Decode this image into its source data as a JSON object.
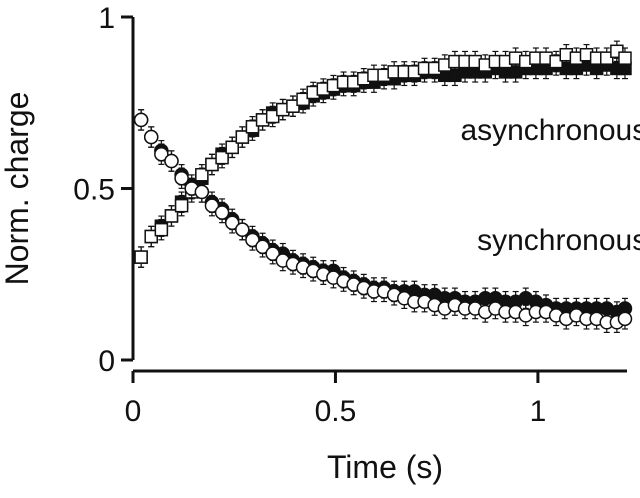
{
  "chart_data": {
    "type": "scatter",
    "title": "",
    "xlabel": "Time (s)",
    "ylabel": "Norm. charge",
    "xlim": [
      0,
      1.22
    ],
    "ylim": [
      0,
      1
    ],
    "xticks": [
      {
        "value": 0,
        "label": "0"
      },
      {
        "value": 0.5,
        "label": "0.5"
      },
      {
        "value": 1,
        "label": "1"
      }
    ],
    "yticks": [
      {
        "value": 0,
        "label": "0"
      },
      {
        "value": 0.5,
        "label": "0.5"
      },
      {
        "value": 1,
        "label": "1"
      }
    ],
    "grid": false,
    "legend": "none",
    "annotations": [
      {
        "text": "asynchronous",
        "x": 1.27,
        "y": 0.67
      },
      {
        "text": "synchronous",
        "x": 1.27,
        "y": 0.35
      }
    ],
    "series": [
      {
        "marker": "square-filled",
        "color": "#000000",
        "x": [
          0.02,
          0.045,
          0.07,
          0.095,
          0.12,
          0.145,
          0.17,
          0.195,
          0.22,
          0.245,
          0.27,
          0.295,
          0.32,
          0.345,
          0.37,
          0.395,
          0.42,
          0.445,
          0.47,
          0.495,
          0.52,
          0.545,
          0.57,
          0.595,
          0.62,
          0.645,
          0.67,
          0.695,
          0.72,
          0.745,
          0.77,
          0.795,
          0.82,
          0.845,
          0.87,
          0.895,
          0.92,
          0.945,
          0.97,
          0.995,
          1.02,
          1.045,
          1.07,
          1.095,
          1.12,
          1.145,
          1.17,
          1.195,
          1.215
        ],
        "y": [
          0.3,
          0.36,
          0.39,
          0.42,
          0.46,
          0.5,
          0.53,
          0.57,
          0.6,
          0.62,
          0.65,
          0.67,
          0.7,
          0.72,
          0.73,
          0.74,
          0.75,
          0.77,
          0.78,
          0.79,
          0.8,
          0.8,
          0.81,
          0.81,
          0.82,
          0.82,
          0.83,
          0.83,
          0.84,
          0.84,
          0.83,
          0.83,
          0.84,
          0.84,
          0.84,
          0.85,
          0.84,
          0.84,
          0.85,
          0.85,
          0.85,
          0.86,
          0.85,
          0.85,
          0.86,
          0.85,
          0.86,
          0.85,
          0.85
        ],
        "err": 0.015
      },
      {
        "marker": "square-open",
        "color": "#ffffff",
        "x": [
          0.02,
          0.045,
          0.07,
          0.095,
          0.12,
          0.145,
          0.17,
          0.195,
          0.22,
          0.245,
          0.27,
          0.295,
          0.32,
          0.345,
          0.37,
          0.395,
          0.42,
          0.445,
          0.47,
          0.495,
          0.52,
          0.545,
          0.57,
          0.595,
          0.62,
          0.645,
          0.67,
          0.695,
          0.72,
          0.745,
          0.77,
          0.795,
          0.82,
          0.845,
          0.87,
          0.895,
          0.92,
          0.945,
          0.97,
          0.995,
          1.02,
          1.045,
          1.07,
          1.095,
          1.12,
          1.145,
          1.17,
          1.195,
          1.215
        ],
        "y": [
          0.3,
          0.36,
          0.38,
          0.42,
          0.45,
          0.49,
          0.54,
          0.57,
          0.59,
          0.62,
          0.65,
          0.68,
          0.7,
          0.71,
          0.73,
          0.74,
          0.76,
          0.78,
          0.79,
          0.8,
          0.81,
          0.81,
          0.82,
          0.83,
          0.83,
          0.84,
          0.84,
          0.84,
          0.85,
          0.85,
          0.86,
          0.87,
          0.87,
          0.87,
          0.86,
          0.87,
          0.87,
          0.88,
          0.87,
          0.88,
          0.88,
          0.87,
          0.89,
          0.88,
          0.89,
          0.88,
          0.88,
          0.9,
          0.88
        ],
        "err": 0.015
      },
      {
        "marker": "circle-filled",
        "color": "#000000",
        "x": [
          0.02,
          0.045,
          0.07,
          0.095,
          0.12,
          0.145,
          0.17,
          0.195,
          0.22,
          0.245,
          0.27,
          0.295,
          0.32,
          0.345,
          0.37,
          0.395,
          0.42,
          0.445,
          0.47,
          0.495,
          0.52,
          0.545,
          0.57,
          0.595,
          0.62,
          0.645,
          0.67,
          0.695,
          0.72,
          0.745,
          0.77,
          0.795,
          0.82,
          0.845,
          0.87,
          0.895,
          0.92,
          0.945,
          0.97,
          0.995,
          1.02,
          1.045,
          1.07,
          1.095,
          1.12,
          1.145,
          1.17,
          1.195,
          1.215
        ],
        "y": [
          0.7,
          0.65,
          0.61,
          0.58,
          0.54,
          0.51,
          0.49,
          0.46,
          0.44,
          0.41,
          0.38,
          0.36,
          0.34,
          0.32,
          0.31,
          0.29,
          0.28,
          0.27,
          0.26,
          0.26,
          0.24,
          0.23,
          0.22,
          0.21,
          0.21,
          0.2,
          0.2,
          0.2,
          0.19,
          0.19,
          0.18,
          0.18,
          0.17,
          0.17,
          0.18,
          0.18,
          0.17,
          0.17,
          0.18,
          0.17,
          0.16,
          0.15,
          0.15,
          0.15,
          0.15,
          0.15,
          0.15,
          0.14,
          0.15
        ],
        "err": 0.015
      },
      {
        "marker": "circle-open",
        "color": "#ffffff",
        "x": [
          0.02,
          0.045,
          0.07,
          0.095,
          0.12,
          0.145,
          0.17,
          0.195,
          0.22,
          0.245,
          0.27,
          0.295,
          0.32,
          0.345,
          0.37,
          0.395,
          0.42,
          0.445,
          0.47,
          0.495,
          0.52,
          0.545,
          0.57,
          0.595,
          0.62,
          0.645,
          0.67,
          0.695,
          0.72,
          0.745,
          0.77,
          0.795,
          0.82,
          0.845,
          0.87,
          0.895,
          0.92,
          0.945,
          0.97,
          0.995,
          1.02,
          1.045,
          1.07,
          1.095,
          1.12,
          1.145,
          1.17,
          1.195,
          1.215
        ],
        "y": [
          0.7,
          0.65,
          0.6,
          0.58,
          0.53,
          0.5,
          0.49,
          0.45,
          0.43,
          0.4,
          0.38,
          0.35,
          0.33,
          0.31,
          0.29,
          0.28,
          0.27,
          0.26,
          0.25,
          0.24,
          0.23,
          0.22,
          0.21,
          0.2,
          0.2,
          0.19,
          0.18,
          0.17,
          0.17,
          0.16,
          0.15,
          0.16,
          0.15,
          0.15,
          0.14,
          0.15,
          0.14,
          0.14,
          0.13,
          0.14,
          0.14,
          0.13,
          0.12,
          0.13,
          0.12,
          0.12,
          0.11,
          0.11,
          0.12
        ],
        "err": 0.015
      }
    ]
  }
}
